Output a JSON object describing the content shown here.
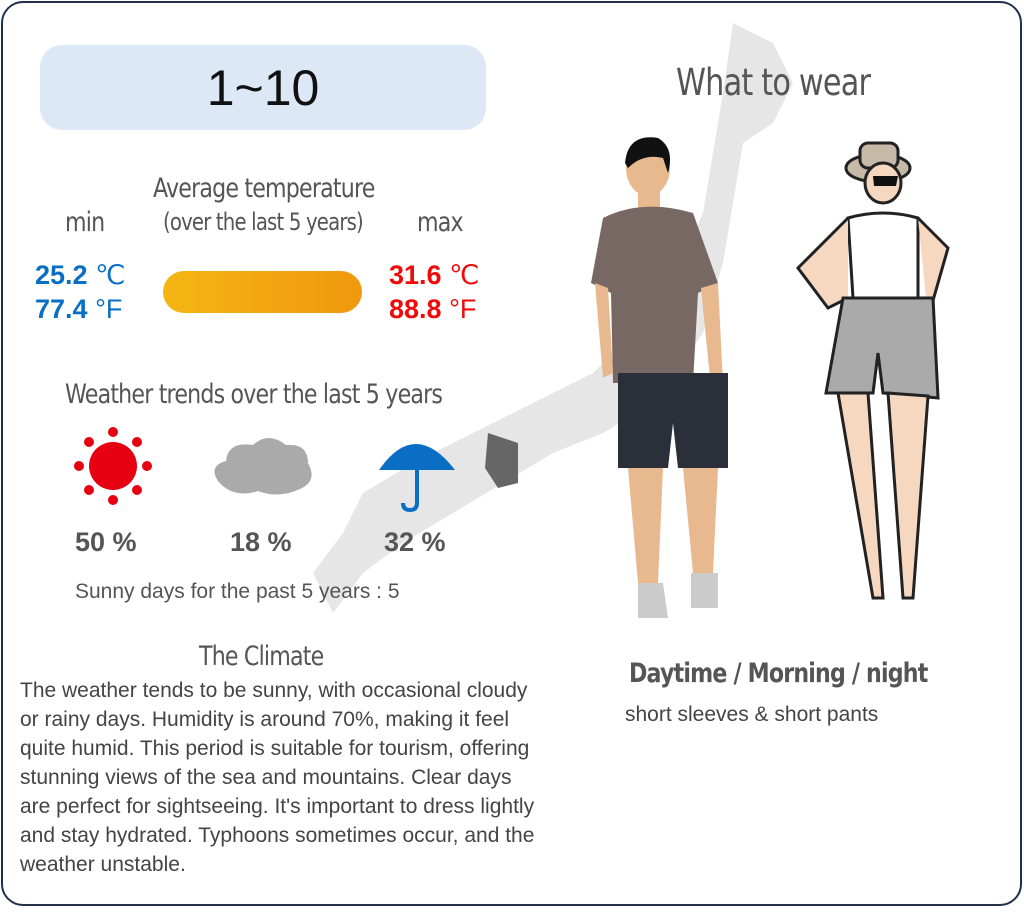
{
  "period": "1~10",
  "heading": "What to wear",
  "temperature": {
    "title_line1": "Average temperature",
    "title_line2": "(over the last 5 years)",
    "min_label": "min",
    "max_label": "max",
    "min_c": "25.2",
    "min_f": "77.4",
    "max_c": "31.6",
    "max_f": "88.8",
    "unit_c": "℃",
    "unit_f": "°F",
    "min_color": "#0a6fc4",
    "max_color": "#f00a0a"
  },
  "trends": {
    "title": "Weather trends over the last 5 years",
    "items": [
      {
        "icon": "sun-icon",
        "percent": "50 %"
      },
      {
        "icon": "cloud-icon",
        "percent": "18 %"
      },
      {
        "icon": "umbrella-icon",
        "percent": "32 %"
      }
    ],
    "sunny_days": "Sunny days for the past 5 years : 5"
  },
  "climate": {
    "title": "The Climate",
    "text": "The weather tends to be sunny, with occasional cloudy or rainy days. Humidity is around 70%, making it feel quite humid. This period is suitable for tourism, offering stunning views of the sea and mountains. Clear days are perfect for sightseeing. It's important to dress lightly and stay hydrated. Typhoons sometimes occur, and the weather unstable."
  },
  "wear": {
    "time": "Daytime / Morning / night",
    "clothes": "short sleeves & short pants"
  }
}
